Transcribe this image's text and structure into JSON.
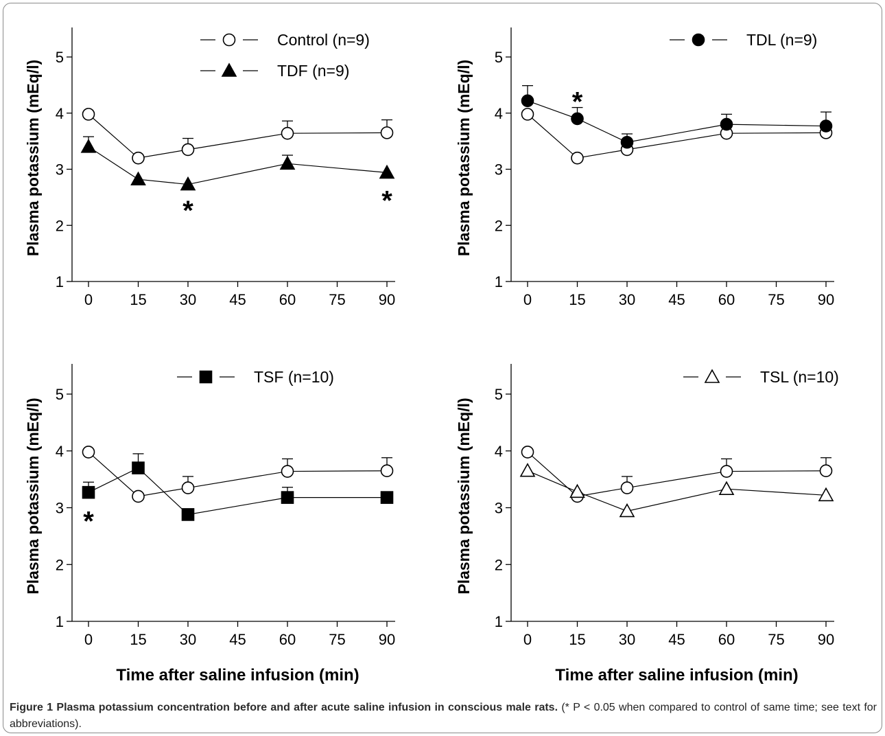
{
  "figure": {
    "caption_title": "Figure 1 Plasma potassium concentration before and after acute saline infusion in conscious male rats.",
    "caption_note": " (* P < 0.05 when compared to control of same time; see text for abbreviations)."
  },
  "chart_data": [
    {
      "type": "line",
      "ylabel": "Plasma potassium (mEq/l)",
      "xlabel": "",
      "x_ticks": [
        0,
        15,
        30,
        45,
        60,
        75,
        90
      ],
      "y_ticks": [
        1,
        2,
        3,
        4,
        5
      ],
      "xlim": [
        0,
        90
      ],
      "ylim": [
        1,
        5.5
      ],
      "legend": [
        {
          "label": "Control  (n=9)",
          "marker": "circle-open"
        },
        {
          "label": "TDF  (n=9)",
          "marker": "triangle-filled"
        }
      ],
      "series": [
        {
          "name": "Control  (n=9)",
          "marker": "circle-open",
          "x": [
            0,
            15,
            30,
            60,
            90
          ],
          "y": [
            3.98,
            3.2,
            3.35,
            3.64,
            3.65
          ],
          "err": [
            0,
            0,
            0.2,
            0.22,
            0.23
          ]
        },
        {
          "name": "TDF  (n=9)",
          "marker": "triangle-filled",
          "x": [
            0,
            15,
            30,
            60,
            90
          ],
          "y": [
            3.4,
            2.82,
            2.73,
            3.1,
            2.94
          ],
          "err": [
            0.18,
            0,
            0,
            0.15,
            0
          ]
        }
      ],
      "annotations": [
        {
          "x": 30,
          "y": 2.32,
          "text": "*"
        },
        {
          "x": 90,
          "y": 2.5,
          "text": "*"
        }
      ]
    },
    {
      "type": "line",
      "ylabel": "Plasma potassium (mEq/l)",
      "xlabel": "",
      "x_ticks": [
        0,
        15,
        30,
        45,
        60,
        75,
        90
      ],
      "y_ticks": [
        1,
        2,
        3,
        4,
        5
      ],
      "xlim": [
        0,
        90
      ],
      "ylim": [
        1,
        5.5
      ],
      "legend": [
        {
          "label": "TDL  (n=9)",
          "marker": "circle-filled"
        }
      ],
      "series": [
        {
          "marker": "circle-open",
          "x": [
            0,
            15,
            30,
            60,
            90
          ],
          "y": [
            3.98,
            3.2,
            3.35,
            3.64,
            3.65
          ],
          "err": [
            0,
            0,
            0,
            0,
            0
          ]
        },
        {
          "name": "TDL  (n=9)",
          "marker": "circle-filled",
          "x": [
            0,
            15,
            30,
            60,
            90
          ],
          "y": [
            4.22,
            3.9,
            3.48,
            3.8,
            3.77
          ],
          "err": [
            0.27,
            0.2,
            0.15,
            0.18,
            0.25
          ]
        }
      ],
      "annotations": [
        {
          "x": 15,
          "y": 4.26,
          "text": "*"
        }
      ]
    },
    {
      "type": "line",
      "ylabel": "Plasma potassium (mEq/l)",
      "xlabel": "Time after saline infusion (min)",
      "x_ticks": [
        0,
        15,
        30,
        45,
        60,
        75,
        90
      ],
      "y_ticks": [
        1,
        2,
        3,
        4,
        5
      ],
      "xlim": [
        0,
        90
      ],
      "ylim": [
        1,
        5.5
      ],
      "legend": [
        {
          "label": "TSF  (n=10)",
          "marker": "square-filled"
        }
      ],
      "series": [
        {
          "marker": "circle-open",
          "x": [
            0,
            15,
            30,
            60,
            90
          ],
          "y": [
            3.98,
            3.2,
            3.35,
            3.64,
            3.65
          ],
          "err": [
            0,
            0,
            0.2,
            0.22,
            0.23
          ]
        },
        {
          "name": "TSF  (n=10)",
          "marker": "square-filled",
          "x": [
            0,
            15,
            30,
            60,
            90
          ],
          "y": [
            3.27,
            3.7,
            2.88,
            3.18,
            3.18
          ],
          "err": [
            0.18,
            0.25,
            0,
            0.18,
            0
          ]
        }
      ],
      "annotations": [
        {
          "x": 0,
          "y": 2.82,
          "text": "*"
        }
      ]
    },
    {
      "type": "line",
      "ylabel": "Plasma potassium (mEq/l)",
      "xlabel": "Time after saline infusion (min)",
      "x_ticks": [
        0,
        15,
        30,
        45,
        60,
        75,
        90
      ],
      "y_ticks": [
        1,
        2,
        3,
        4,
        5
      ],
      "xlim": [
        0,
        90
      ],
      "ylim": [
        1,
        5.5
      ],
      "legend": [
        {
          "label": "TSL  (n=10)",
          "marker": "triangle-open"
        }
      ],
      "series": [
        {
          "marker": "circle-open",
          "x": [
            0,
            15,
            30,
            60,
            90
          ],
          "y": [
            3.98,
            3.2,
            3.35,
            3.64,
            3.65
          ],
          "err": [
            0,
            0,
            0.2,
            0.22,
            0.23
          ]
        },
        {
          "name": "TSL  (n=10)",
          "marker": "triangle-open",
          "x": [
            0,
            15,
            30,
            60,
            90
          ],
          "y": [
            3.65,
            3.28,
            2.94,
            3.33,
            3.22
          ],
          "err": [
            0,
            0,
            0,
            0,
            0
          ]
        }
      ],
      "annotations": []
    }
  ]
}
